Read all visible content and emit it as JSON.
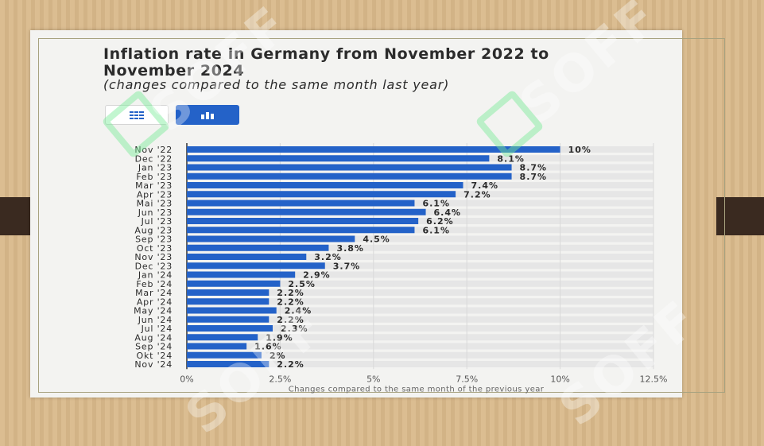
{
  "watermark": "SOFF",
  "colors": {
    "bar": "#2462c8",
    "text": "#2b2b2b",
    "grid": "#e6e6e6"
  },
  "buttons": {
    "table_icon": "table-icon",
    "chart_icon": "bar-chart-icon"
  },
  "chart_data": {
    "type": "bar",
    "orientation": "horizontal",
    "title": "Inflation rate in Germany from November 2022 to November 2024",
    "subtitle": "(changes compared to the same month last year)",
    "xlabel": "Changes compared to the same month of the previous year",
    "ylabel": "",
    "xlim": [
      0,
      12.5
    ],
    "xticks": [
      "0%",
      "2.5%",
      "5%",
      "7.5%",
      "10%",
      "12.5%"
    ],
    "xtick_values": [
      0,
      2.5,
      5,
      7.5,
      10,
      12.5
    ],
    "categories": [
      "Nov '22",
      "Dec '22",
      "Jan '23",
      "Feb '23",
      "Mar '23",
      "Apr '23",
      "Mai '23",
      "Jun '23",
      "Jul '23",
      "Aug '23",
      "Sep '23",
      "Oct '23",
      "Nov '23",
      "Dec '23",
      "Jan '24",
      "Feb '24",
      "Mar '24",
      "Apr '24",
      "May '24",
      "Jun '24",
      "Jul '24",
      "Aug '24",
      "Sep '24",
      "Okt '24",
      "Nov '24"
    ],
    "values": [
      10,
      8.1,
      8.7,
      8.7,
      7.4,
      7.2,
      6.1,
      6.4,
      6.2,
      6.1,
      4.5,
      3.8,
      3.2,
      3.7,
      2.9,
      2.5,
      2.2,
      2.2,
      2.4,
      2.2,
      2.3,
      1.9,
      1.6,
      2,
      2.2
    ],
    "labels": [
      "10%",
      "8.1%",
      "8.7%",
      "8.7%",
      "7.4%",
      "7.2%",
      "6.1%",
      "6.4%",
      "6.2%",
      "6.1%",
      "4.5%",
      "3.8%",
      "3.2%",
      "3.7%",
      "2.9%",
      "2.5%",
      "2.2%",
      "2.2%",
      "2.4%",
      "2.2%",
      "2.3%",
      "1.9%",
      "1.6%",
      "2%",
      "2.2%"
    ],
    "grid": true
  }
}
